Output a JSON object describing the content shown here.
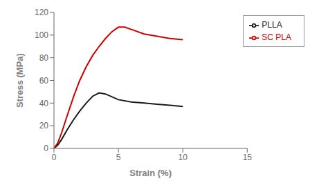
{
  "chart_data": {
    "type": "line",
    "xlabel": "Strain (%)",
    "ylabel": "Stress (MPa)",
    "xlim": [
      0,
      15
    ],
    "ylim": [
      0,
      120
    ],
    "xticks": [
      0,
      5,
      10,
      15
    ],
    "yticks": [
      0,
      20,
      40,
      60,
      80,
      100,
      120
    ],
    "grid": false,
    "legend": "upper right",
    "series": [
      {
        "name": "PLLA",
        "color": "#1a1a1a",
        "x": [
          0,
          0.3,
          0.6,
          1.0,
          1.5,
          2.0,
          2.5,
          3.0,
          3.5,
          4.0,
          5.0,
          6.0,
          7.0,
          8.0,
          9.0,
          10.0
        ],
        "values": [
          0,
          3,
          8,
          16,
          25,
          33,
          40,
          46,
          49,
          48,
          43,
          41,
          40,
          39,
          38,
          37
        ]
      },
      {
        "name": "SC PLA",
        "color": "#cc0000",
        "x": [
          0,
          0.3,
          0.6,
          1.0,
          1.5,
          2.0,
          2.5,
          3.0,
          3.5,
          4.0,
          4.5,
          5.0,
          5.5,
          6.0,
          7.0,
          8.0,
          9.0,
          10.0
        ],
        "values": [
          0,
          5,
          14,
          28,
          45,
          60,
          72,
          82,
          90,
          97,
          103,
          107,
          107,
          105,
          101,
          99,
          97,
          96
        ]
      }
    ]
  }
}
